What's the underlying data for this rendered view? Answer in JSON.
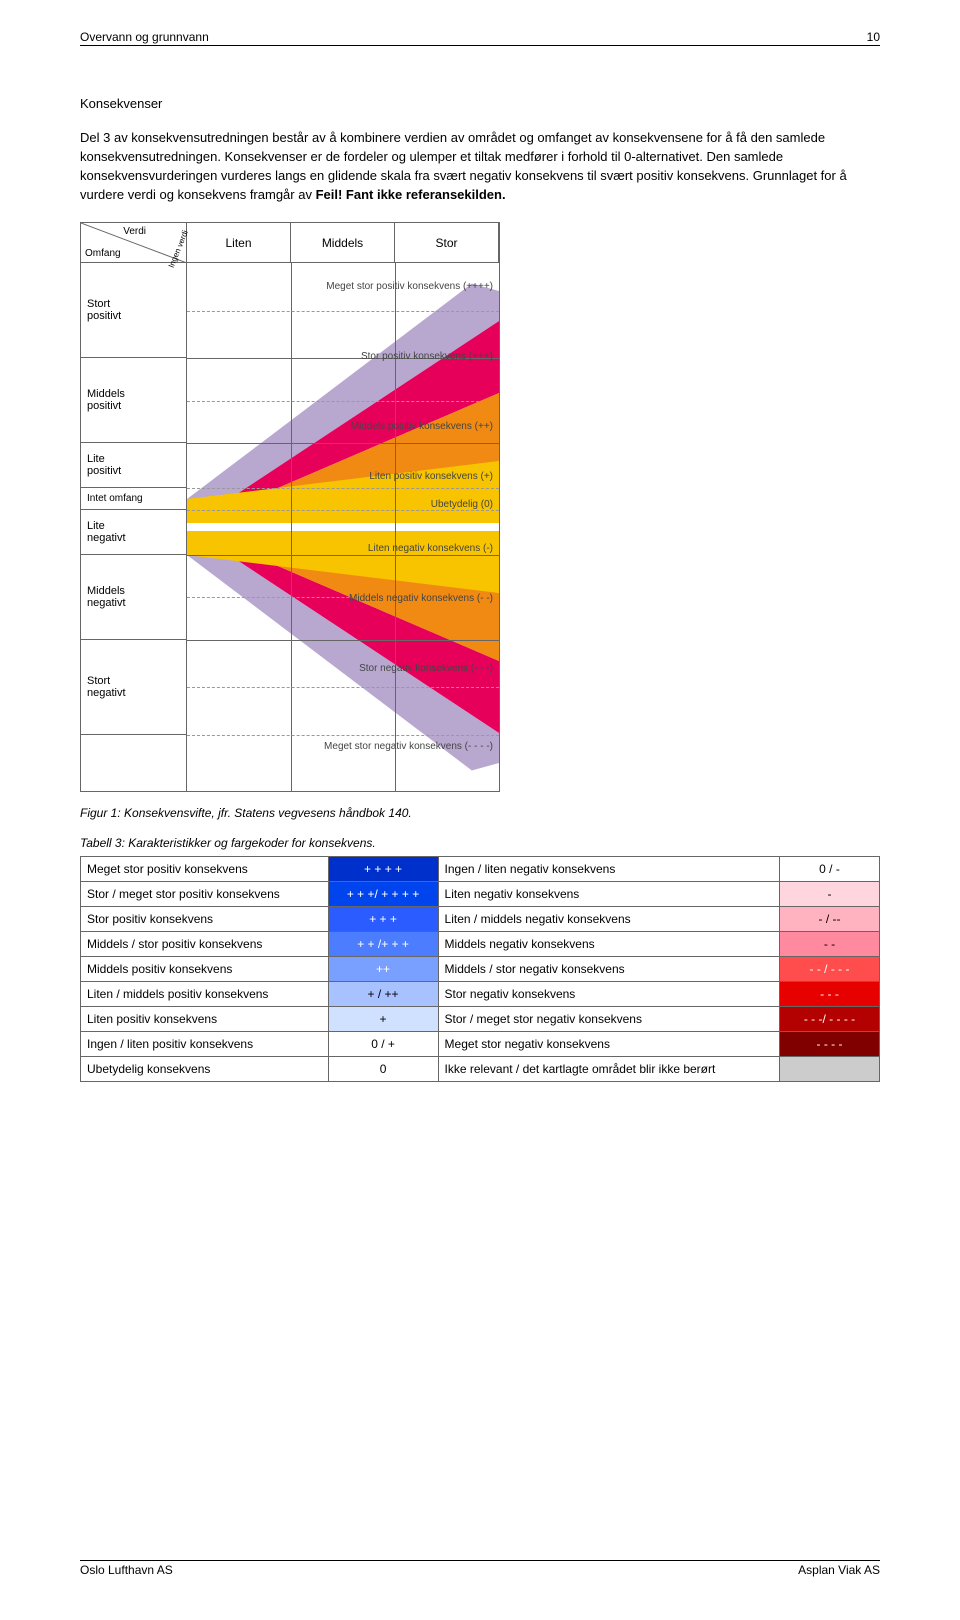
{
  "header": {
    "title": "Overvann og grunnvann",
    "page_number": "10"
  },
  "footer": {
    "left": "Oslo Lufthavn AS",
    "right": "Asplan Viak AS"
  },
  "heading": "Konsekvenser",
  "body_paragraph": "Del 3 av konsekvensutredningen består av å kombinere verdien av området og omfanget av konsekvensene for å få den samlede konsekvensutredningen. Konsekvenser er de fordeler og ulemper et tiltak medfører i forhold til 0-alternativet. Den samlede konsekvensvurderingen vurderes langs en glidende skala fra svært negativ konsekvens til svært positiv konsekvens. Grunnlaget for å vurdere verdi og konsekvens framgår av ",
  "body_bold_tail": "Feil! Fant ikke referansekilden.",
  "figure": {
    "caption": "Figur 1: Konsekvensvifte, jfr. Statens vegvesens håndbok 140.",
    "axis_y": "Omfang",
    "axis_x": "Verdi",
    "diag_label": "Ingen verdi",
    "col_headers": [
      "Liten",
      "Middels",
      "Stor"
    ],
    "row_headers": [
      "Stort\npositivt",
      "Middels\npositivt",
      "Lite\npositivt",
      "Intet omfang",
      "Lite\nnegativt",
      "Middels\nnegativt",
      "Stort\nnegativt"
    ],
    "band_labels": [
      "Meget stor positiv konsekvens (++++)",
      "Stor positiv konsekvens (+++)",
      "Middels positiv konsekvens (++)",
      "Liten positiv konsekvens (+)",
      "Ubetydelig (0)",
      "Liten negativ konsekvens (-)",
      "Middels negativ konsekvens (- -)",
      "Stor negativ konsekvens (- - -)",
      "Meget stor negativ konsekvens (- - - -)"
    ],
    "colors": {
      "yellow": "#f8c400",
      "orange": "#f08a12",
      "red": "#e6005a",
      "purple": "#b8a8d0"
    }
  },
  "table": {
    "caption": "Tabell 3: Karakteristikker og fargekoder for konsekvens.",
    "rows": [
      {
        "l": "Meget stor positiv konsekvens",
        "ls": "+ + + +",
        "lbg": "#0030cc",
        "lfg": "#ffffff",
        "r": "Ingen / liten negativ konsekvens",
        "rs": "0 / -",
        "rbg": "#ffffff",
        "rfg": "#000000"
      },
      {
        "l": "Stor / meget stor positiv konsekvens",
        "ls": "+ + +/ + + + +",
        "lbg": "#0044ee",
        "lfg": "#ffffff",
        "r": "Liten negativ konsekvens",
        "rs": "-",
        "rbg": "#ffd6de",
        "rfg": "#000000"
      },
      {
        "l": "Stor positiv konsekvens",
        "ls": "+ + +",
        "lbg": "#2a5cff",
        "lfg": "#ffffff",
        "r": "Liten / middels negativ konsekvens",
        "rs": "- / --",
        "rbg": "#ffb3c1",
        "rfg": "#000000"
      },
      {
        "l": "Middels / stor positiv konsekvens",
        "ls": "+ + /+ + +",
        "lbg": "#4d7dff",
        "lfg": "#ffffff",
        "r": "Middels negativ konsekvens",
        "rs": "- -",
        "rbg": "#ff8aa0",
        "rfg": "#000000"
      },
      {
        "l": "Middels positiv konsekvens",
        "ls": "++",
        "lbg": "#7aa0ff",
        "lfg": "#ffffff",
        "r": "Middels / stor negativ konsekvens",
        "rs": "- - / - - -",
        "rbg": "#ff4d4d",
        "rfg": "#ffffff"
      },
      {
        "l": "Liten / middels positiv konsekvens",
        "ls": "+ / ++",
        "lbg": "#a8c2ff",
        "lfg": "#000000",
        "r": "Stor negativ konsekvens",
        "rs": "- - -",
        "rbg": "#e60000",
        "rfg": "#ffffff"
      },
      {
        "l": "Liten positiv konsekvens",
        "ls": "+",
        "lbg": "#d0e0ff",
        "lfg": "#000000",
        "r": "Stor / meget stor negativ konsekvens",
        "rs": "- - -/ - - - -",
        "rbg": "#b30000",
        "rfg": "#ffffff"
      },
      {
        "l": "Ingen / liten positiv konsekvens",
        "ls": "0 / +",
        "lbg": "#ffffff",
        "lfg": "#000000",
        "r": "Meget stor negativ konsekvens",
        "rs": "- - - -",
        "rbg": "#800000",
        "rfg": "#ffffff"
      },
      {
        "l": "Ubetydelig konsekvens",
        "ls": "0",
        "lbg": "#ffffff",
        "lfg": "#000000",
        "r": "Ikke relevant / det kartlagte området blir ikke berørt",
        "rs": "",
        "rbg": "#cccccc",
        "rfg": "#000000"
      }
    ]
  }
}
